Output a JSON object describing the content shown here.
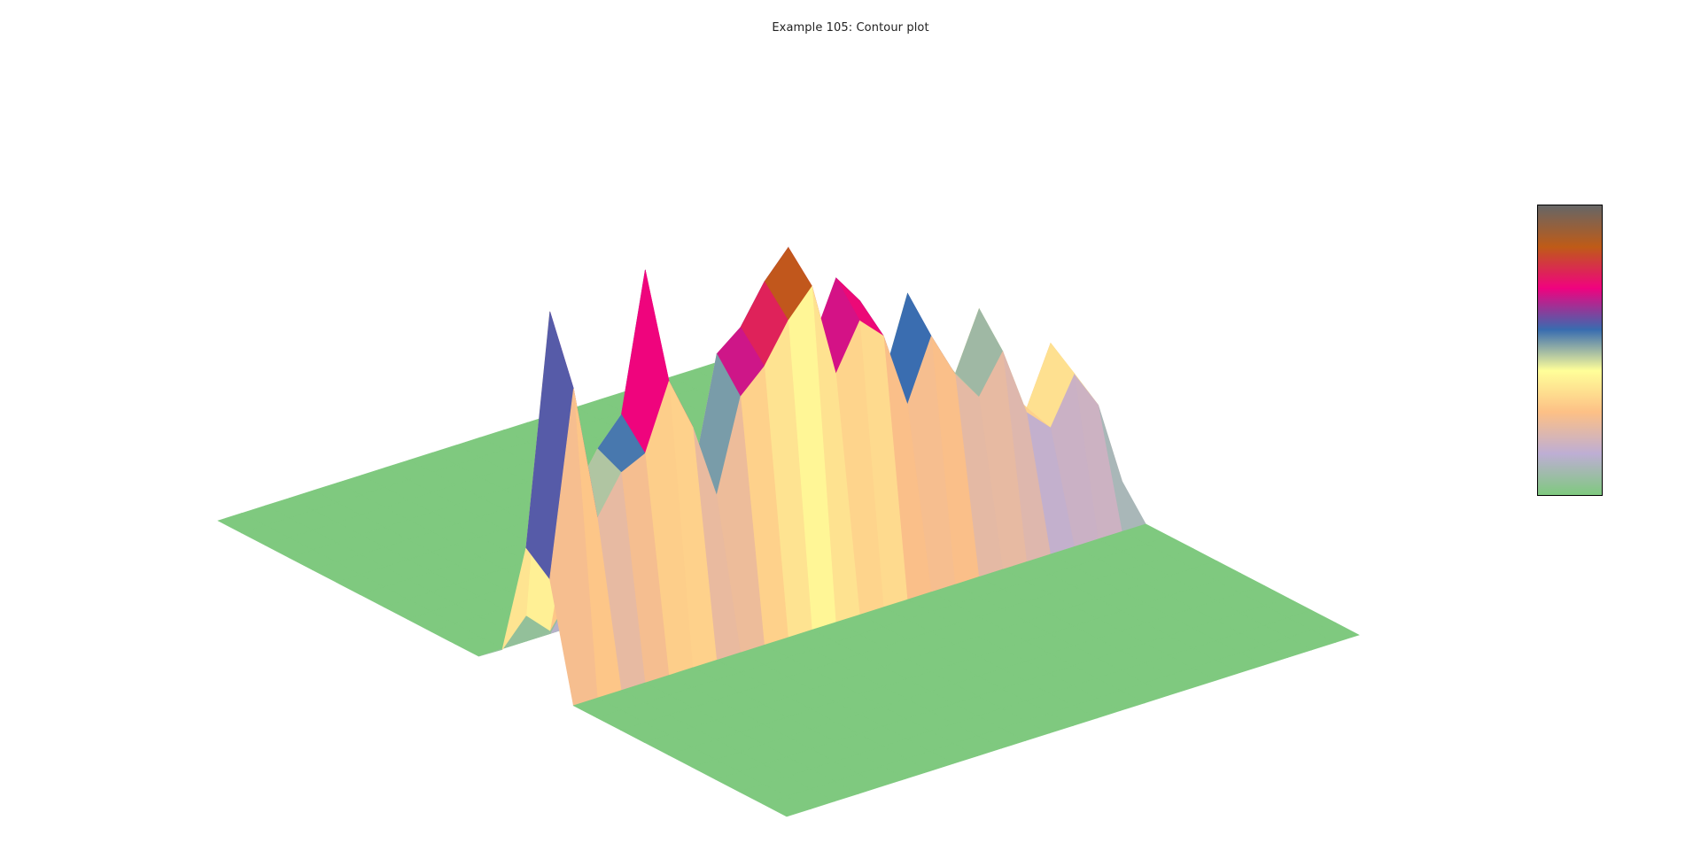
{
  "chart_data": {
    "type": "surface",
    "title": "Example 105: Contour plot",
    "colorscale": "Accent",
    "colorbar": {
      "visible": true,
      "tick_labels": [],
      "colors": [
        "#7fc97f",
        "#beaed4",
        "#fdc086",
        "#ffff99",
        "#386cb0",
        "#f0027f",
        "#bf5b17",
        "#666666"
      ]
    },
    "axes": {
      "visible": false,
      "grid": false
    },
    "z_min": 0,
    "z_max": 1,
    "z": [
      [
        0,
        0,
        0,
        0,
        0,
        0,
        0,
        0,
        0,
        0,
        0,
        0,
        0,
        0,
        0,
        0,
        0,
        0,
        0,
        0,
        0,
        0,
        0,
        0,
        0
      ],
      [
        0,
        0,
        0,
        0,
        0,
        0,
        0,
        0,
        0,
        0,
        0,
        0,
        0,
        0,
        0,
        0,
        0,
        0,
        0,
        0,
        0,
        0,
        0,
        0,
        0
      ],
      [
        0,
        0,
        0,
        0,
        0,
        0,
        0,
        0,
        0,
        0,
        0,
        0,
        0,
        0,
        0,
        0,
        0,
        0,
        0,
        0,
        0,
        0,
        0,
        0,
        0
      ],
      [
        0,
        0,
        0,
        0,
        0,
        0,
        0,
        0,
        0,
        0,
        0,
        0,
        0,
        0,
        0,
        0,
        0,
        0,
        0,
        0,
        0,
        0,
        0,
        0,
        0
      ],
      [
        0,
        0,
        0,
        0,
        0,
        0,
        0,
        0,
        0,
        0,
        0,
        0,
        0,
        0,
        0,
        0,
        0,
        0,
        0,
        0,
        0,
        0,
        0,
        0,
        0
      ],
      [
        0,
        0,
        0,
        0,
        0,
        0,
        0,
        0,
        0,
        0,
        0,
        0,
        0,
        0,
        0,
        0,
        0,
        0,
        0,
        0,
        0,
        0,
        0,
        0,
        0
      ],
      [
        0,
        0,
        0,
        0,
        0,
        0,
        0,
        0,
        0,
        0,
        0,
        0,
        0,
        0,
        0,
        0,
        0,
        0,
        0,
        0,
        0,
        0,
        0,
        0,
        0
      ],
      [
        0,
        0,
        0,
        0,
        0,
        0,
        0,
        0,
        0,
        0,
        0,
        0,
        0,
        0,
        0,
        0,
        0,
        0,
        0,
        0,
        0,
        0,
        0,
        0,
        0
      ],
      [
        0,
        0,
        0,
        0,
        0,
        0,
        0,
        0,
        0,
        0,
        0,
        0,
        0,
        0,
        0,
        0,
        0,
        0,
        0,
        0,
        0,
        0,
        0,
        0,
        0
      ],
      [
        0,
        0,
        0,
        0,
        0,
        0,
        0,
        0,
        0,
        0,
        0,
        0,
        0,
        0,
        0,
        0,
        0,
        0,
        0,
        0,
        0,
        0,
        0,
        0,
        0
      ],
      [
        0,
        0,
        0,
        0,
        0,
        0,
        0,
        0,
        0,
        0,
        0,
        0,
        0,
        0,
        0,
        0,
        0,
        0,
        0,
        0,
        0,
        0,
        0,
        0,
        0
      ],
      [
        0,
        0,
        0,
        0,
        0,
        0,
        0,
        0,
        0,
        0,
        0,
        0,
        0,
        0,
        0,
        0,
        0,
        0,
        0,
        0,
        0,
        0,
        0,
        0,
        0
      ],
      [
        0.05,
        0.12,
        0.06,
        0.15,
        0.35,
        0.22,
        0.45,
        0.2,
        0.12,
        0.3,
        0.55,
        0.25,
        0.1,
        0.35,
        0.6,
        0.3,
        0.18,
        0.4,
        0.22,
        0.35,
        0.15,
        0.2,
        0.1,
        0.25,
        0.05
      ],
      [
        0.35,
        0.95,
        0.45,
        0.55,
        0.62,
        0.98,
        0.6,
        0.4,
        0.7,
        0.75,
        0.85,
        0.92,
        0.65,
        0.8,
        0.72,
        0.5,
        0.7,
        0.55,
        0.45,
        0.6,
        0.38,
        0.3,
        0.45,
        0.35,
        0.1
      ],
      [
        0.3,
        0.78,
        0.42,
        0.52,
        0.55,
        0.72,
        0.58,
        0.38,
        0.62,
        0.68,
        0.78,
        0.85,
        0.6,
        0.72,
        0.66,
        0.46,
        0.62,
        0.5,
        0.42,
        0.52,
        0.34,
        0.28,
        0.4,
        0.3,
        0.08
      ],
      [
        0,
        0,
        0,
        0,
        0,
        0,
        0,
        0,
        0,
        0,
        0,
        0,
        0,
        0,
        0,
        0,
        0,
        0,
        0,
        0,
        0,
        0,
        0,
        0,
        0
      ],
      [
        0,
        0,
        0,
        0,
        0,
        0,
        0,
        0,
        0,
        0,
        0,
        0,
        0,
        0,
        0,
        0,
        0,
        0,
        0,
        0,
        0,
        0,
        0,
        0,
        0
      ],
      [
        0,
        0,
        0,
        0,
        0,
        0,
        0,
        0,
        0,
        0,
        0,
        0,
        0,
        0,
        0,
        0,
        0,
        0,
        0,
        0,
        0,
        0,
        0,
        0,
        0
      ],
      [
        0,
        0,
        0,
        0,
        0,
        0,
        0,
        0,
        0,
        0,
        0,
        0,
        0,
        0,
        0,
        0,
        0,
        0,
        0,
        0,
        0,
        0,
        0,
        0,
        0
      ],
      [
        0,
        0,
        0,
        0,
        0,
        0,
        0,
        0,
        0,
        0,
        0,
        0,
        0,
        0,
        0,
        0,
        0,
        0,
        0,
        0,
        0,
        0,
        0,
        0,
        0
      ],
      [
        0,
        0,
        0,
        0,
        0,
        0,
        0,
        0,
        0,
        0,
        0,
        0,
        0,
        0,
        0,
        0,
        0,
        0,
        0,
        0,
        0,
        0,
        0,
        0,
        0
      ],
      [
        0,
        0,
        0,
        0,
        0,
        0,
        0,
        0,
        0,
        0,
        0,
        0,
        0,
        0,
        0,
        0,
        0,
        0,
        0,
        0,
        0,
        0,
        0,
        0,
        0
      ],
      [
        0,
        0,
        0,
        0,
        0,
        0,
        0,
        0,
        0,
        0,
        0,
        0,
        0,
        0,
        0,
        0,
        0,
        0,
        0,
        0,
        0,
        0,
        0,
        0,
        0
      ],
      [
        0,
        0,
        0,
        0,
        0,
        0,
        0,
        0,
        0,
        0,
        0,
        0,
        0,
        0,
        0,
        0,
        0,
        0,
        0,
        0,
        0,
        0,
        0,
        0,
        0
      ],
      [
        0,
        0,
        0,
        0,
        0,
        0,
        0,
        0,
        0,
        0,
        0,
        0,
        0,
        0,
        0,
        0,
        0,
        0,
        0,
        0,
        0,
        0,
        0,
        0,
        0
      ]
    ]
  }
}
